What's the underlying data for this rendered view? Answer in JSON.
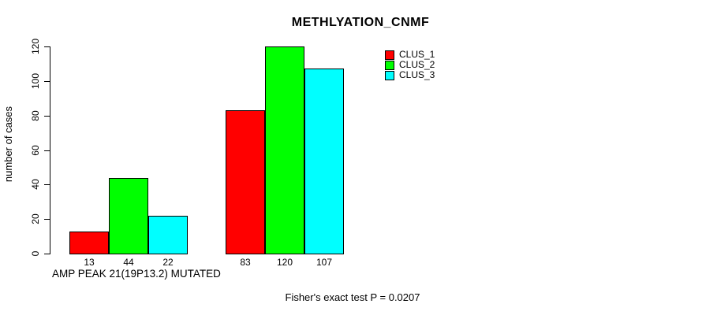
{
  "chart_data": {
    "type": "bar",
    "title": "METHLYATION_CNMF",
    "ylabel": "number of cases",
    "ylim": [
      0,
      120
    ],
    "yticks": [
      0,
      20,
      40,
      60,
      80,
      100,
      120
    ],
    "categories": [
      "AMP PEAK 21(19P13.2) MUTATED",
      ""
    ],
    "series": [
      {
        "name": "CLUS_1",
        "color": "#FF0000",
        "values": [
          13,
          83
        ]
      },
      {
        "name": "CLUS_2",
        "color": "#00FF00",
        "values": [
          44,
          120
        ]
      },
      {
        "name": "CLUS_3",
        "color": "#00FFFF",
        "values": [
          22,
          107
        ]
      }
    ],
    "bar_value_labels": [
      [
        13,
        44,
        22
      ],
      [
        83,
        120,
        107
      ]
    ],
    "footer": "Fisher's exact test P = 0.0207",
    "legend_position": "top-right",
    "grid": false,
    "background": "#FFFFFF",
    "axis_color": "#000000"
  }
}
